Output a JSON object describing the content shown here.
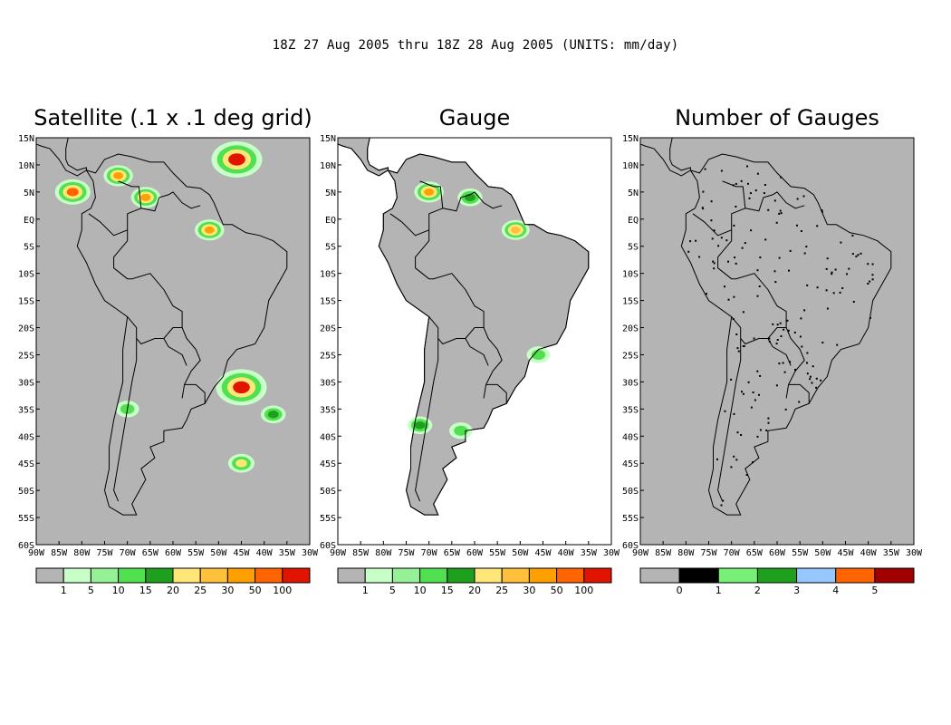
{
  "header": "18Z 27 Aug 2005 thru 18Z 28 Aug 2005 (UNITS: mm/day)",
  "colors": {
    "background": "#b4b4b4",
    "land_outline": "#000000",
    "frame": "#000000"
  },
  "chart_data": [
    {
      "type": "heatmap",
      "title": "Satellite (.1 x .1 deg grid)",
      "x_ticks": [
        "90W",
        "85W",
        "80W",
        "75W",
        "70W",
        "65W",
        "60W",
        "55W",
        "50W",
        "45W",
        "40W",
        "35W",
        "30W"
      ],
      "y_ticks": [
        "15N",
        "10N",
        "5N",
        "EQ",
        "5S",
        "10S",
        "15S",
        "20S",
        "25S",
        "30S",
        "35S",
        "40S",
        "45S",
        "50S",
        "55S",
        "60S"
      ],
      "xlim": [
        -90,
        -30
      ],
      "ylim": [
        -60,
        15
      ],
      "colorbar": {
        "colors": [
          "#b4b4b4",
          "#c8ffc8",
          "#96f096",
          "#50e050",
          "#1ea01e",
          "#ffe678",
          "#ffc03c",
          "#ffa000",
          "#ff6400",
          "#e11400"
        ],
        "labels": [
          "1",
          "5",
          "10",
          "15",
          "20",
          "25",
          "30",
          "50",
          "100"
        ]
      },
      "features": [
        {
          "lon": -82,
          "lat": 5,
          "value": 50
        },
        {
          "lon": -72,
          "lat": 8,
          "value": 30
        },
        {
          "lon": -66,
          "lat": 4,
          "value": 30
        },
        {
          "lon": -46,
          "lat": 11,
          "value": 100
        },
        {
          "lon": -52,
          "lat": -2,
          "value": 30
        },
        {
          "lon": -45,
          "lat": -31,
          "value": 100
        },
        {
          "lon": -38,
          "lat": -36,
          "value": 15
        },
        {
          "lon": -45,
          "lat": -45,
          "value": 20
        },
        {
          "lon": -70,
          "lat": -35,
          "value": 10
        }
      ]
    },
    {
      "type": "heatmap",
      "title": "Gauge",
      "x_ticks": [
        "90W",
        "85W",
        "80W",
        "75W",
        "70W",
        "65W",
        "60W",
        "55W",
        "50W",
        "45W",
        "40W",
        "35W",
        "30W"
      ],
      "y_ticks": [
        "15N",
        "10N",
        "5N",
        "EQ",
        "5S",
        "10S",
        "15S",
        "20S",
        "25S",
        "30S",
        "35S",
        "40S",
        "45S",
        "50S",
        "55S",
        "60S"
      ],
      "xlim": [
        -90,
        -30
      ],
      "ylim": [
        -60,
        15
      ],
      "colorbar": {
        "colors": [
          "#b4b4b4",
          "#c8ffc8",
          "#96f096",
          "#50e050",
          "#1ea01e",
          "#ffe678",
          "#ffc03c",
          "#ffa000",
          "#ff6400",
          "#e11400"
        ],
        "labels": [
          "1",
          "5",
          "10",
          "15",
          "20",
          "25",
          "30",
          "50",
          "100"
        ]
      },
      "features": [
        {
          "lon": -70,
          "lat": 5,
          "value": 30
        },
        {
          "lon": -61,
          "lat": 4,
          "value": 15
        },
        {
          "lon": -51,
          "lat": -2,
          "value": 25
        },
        {
          "lon": -72,
          "lat": -38,
          "value": 15
        },
        {
          "lon": -63,
          "lat": -39,
          "value": 10
        },
        {
          "lon": -46,
          "lat": -25,
          "value": 10
        }
      ]
    },
    {
      "type": "heatmap",
      "title": "Number of Gauges",
      "x_ticks": [
        "90W",
        "85W",
        "80W",
        "75W",
        "70W",
        "65W",
        "60W",
        "55W",
        "50W",
        "45W",
        "40W",
        "35W",
        "30W"
      ],
      "y_ticks": [
        "15N",
        "10N",
        "5N",
        "EQ",
        "5S",
        "10S",
        "15S",
        "20S",
        "25S",
        "30S",
        "35S",
        "40S",
        "45S",
        "50S",
        "55S",
        "60S"
      ],
      "xlim": [
        -90,
        -30
      ],
      "ylim": [
        -60,
        15
      ],
      "colorbar": {
        "colors": [
          "#b4b4b4",
          "#000000",
          "#78f078",
          "#1ea01e",
          "#96c8ff",
          "#ff6400",
          "#a00000"
        ],
        "labels": [
          "0",
          "1",
          "2",
          "3",
          "4",
          "5"
        ]
      }
    }
  ]
}
